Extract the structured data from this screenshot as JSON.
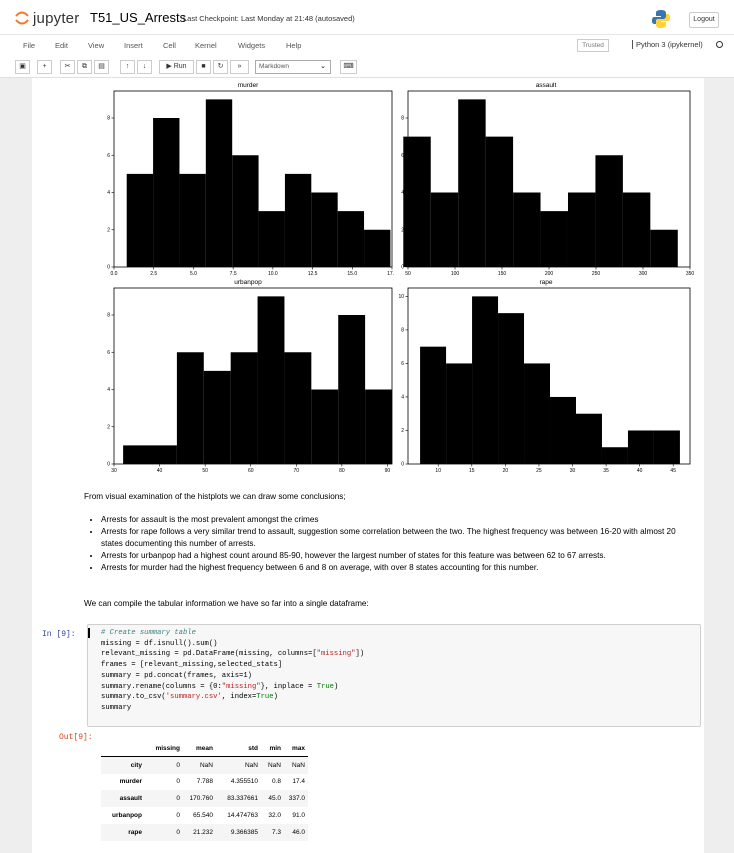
{
  "app": {
    "brand": "jupyter",
    "notebook_title": "T51_US_Arrests",
    "checkpoint": "Last Checkpoint: Last Monday at 21:48  (autosaved)",
    "logout": "Logout"
  },
  "menu": {
    "items": [
      "File",
      "Edit",
      "View",
      "Insert",
      "Cell",
      "Kernel",
      "Widgets",
      "Help"
    ],
    "trusted": "Trusted",
    "kernel": "Python 3 (ipykernel)"
  },
  "toolbar": {
    "run": "▶ Run",
    "cell_type": "Markdown"
  },
  "chart_data": [
    {
      "type": "bar",
      "title": "murder",
      "bins": [
        [
          0.8,
          2.46,
          5
        ],
        [
          2.46,
          4.12,
          8
        ],
        [
          4.12,
          5.78,
          5
        ],
        [
          5.78,
          7.44,
          9
        ],
        [
          7.44,
          9.1,
          6
        ],
        [
          9.1,
          10.76,
          3
        ],
        [
          10.76,
          12.42,
          5
        ],
        [
          12.42,
          14.08,
          4
        ],
        [
          14.08,
          15.74,
          3
        ],
        [
          15.74,
          17.4,
          2
        ]
      ],
      "xlim": [
        0,
        17.5
      ],
      "ylim": [
        0,
        9.45
      ],
      "xticks": [
        0.0,
        2.5,
        5.0,
        7.5,
        10.0,
        12.5,
        15.0,
        17.5
      ],
      "xtick_labels": [
        "0.0",
        "2.5",
        "5.0",
        "7.5",
        "10.0",
        "12.5",
        "15.0",
        "17.5"
      ],
      "yticks": [
        0,
        2,
        4,
        6,
        8
      ]
    },
    {
      "type": "bar",
      "title": "assault",
      "bins": [
        [
          45,
          74.2,
          7
        ],
        [
          74.2,
          103.4,
          4
        ],
        [
          103.4,
          132.6,
          9
        ],
        [
          132.6,
          161.8,
          7
        ],
        [
          161.8,
          191,
          4
        ],
        [
          191,
          220.2,
          3
        ],
        [
          220.2,
          249.4,
          4
        ],
        [
          249.4,
          278.6,
          6
        ],
        [
          278.6,
          307.8,
          4
        ],
        [
          307.8,
          337,
          2
        ]
      ],
      "xlim": [
        50,
        350
      ],
      "ylim": [
        0,
        9.45
      ],
      "xticks": [
        50,
        100,
        150,
        200,
        250,
        300,
        350
      ],
      "xtick_labels": [
        "50",
        "100",
        "150",
        "200",
        "250",
        "300",
        "350"
      ],
      "yticks": [
        0,
        2,
        4,
        6,
        8
      ]
    },
    {
      "type": "bar",
      "title": "urbanpop",
      "bins": [
        [
          32,
          37.9,
          1
        ],
        [
          37.9,
          43.8,
          1
        ],
        [
          43.8,
          49.7,
          6
        ],
        [
          49.7,
          55.6,
          5
        ],
        [
          55.6,
          61.5,
          6
        ],
        [
          61.5,
          67.4,
          9
        ],
        [
          67.4,
          73.3,
          6
        ],
        [
          73.3,
          79.2,
          4
        ],
        [
          79.2,
          85.1,
          8
        ],
        [
          85.1,
          91,
          4
        ]
      ],
      "xlim": [
        30,
        91
      ],
      "ylim": [
        0,
        9.45
      ],
      "xticks": [
        30,
        40,
        50,
        60,
        70,
        80,
        90
      ],
      "xtick_labels": [
        "30",
        "40",
        "50",
        "60",
        "70",
        "80",
        "90"
      ],
      "yticks": [
        0,
        2,
        4,
        6,
        8
      ]
    },
    {
      "type": "bar",
      "title": "rape",
      "bins": [
        [
          7.3,
          11.17,
          7
        ],
        [
          11.17,
          15.04,
          6
        ],
        [
          15.04,
          18.91,
          10
        ],
        [
          18.91,
          22.78,
          9
        ],
        [
          22.78,
          26.65,
          6
        ],
        [
          26.65,
          30.52,
          4
        ],
        [
          30.52,
          34.39,
          3
        ],
        [
          34.39,
          38.26,
          1
        ],
        [
          38.26,
          42.13,
          2
        ],
        [
          42.13,
          46,
          2
        ]
      ],
      "xlim": [
        5.5,
        47.5
      ],
      "ylim": [
        0,
        10.5
      ],
      "xticks": [
        10,
        15,
        20,
        25,
        30,
        35,
        40,
        45
      ],
      "xtick_labels": [
        "10",
        "15",
        "20",
        "25",
        "30",
        "35",
        "40",
        "45"
      ],
      "yticks": [
        0,
        2,
        4,
        6,
        8,
        10
      ]
    }
  ],
  "markdown": {
    "intro": "From visual examination of the histplots we can draw some conclusions;",
    "bullets": [
      "Arrests for assault is the most prevalent amongst the crimes",
      "Arrests for rape follows a very similar trend to assault, suggestion some correlation between the two. The highest frequency was between 16-20 with almost 20 states documenting this number of arrests.",
      "Arrests for urbanpop had a highest count around 85-90, however the largest number of states for this feature was between 62 to 67 arrests.",
      "Arrests for murder had the highest frequency between 6 and 8 on average, with over 8 states accounting for this number."
    ],
    "compile": "We can compile the tabular information we have so far into a single dataframe:"
  },
  "cell": {
    "in_prompt": "In [9]:",
    "out_prompt": "Out[9]:",
    "code": {
      "comment": "# Create summary table",
      "l2": "missing = df.isnull().sum()",
      "l3a": "relevant_missing = pd.DataFrame(missing, columns=[",
      "l3s": "\"missing\"",
      "l3b": "])",
      "l4": "frames = [relevant_missing,selected_stats]",
      "l5": "summary = pd.concat(frames, axis=1)",
      "l6a": "summary.rename(columns = {0:",
      "l6s": "\"missing\"",
      "l6b": "}, inplace = ",
      "l6k": "True",
      "l6c": ")",
      "l7a": "summary.to_csv(",
      "l7s": "'summary.csv'",
      "l7b": ", index=",
      "l7k": "True",
      "l7c": ")",
      "l8": "summary"
    }
  },
  "dataframe": {
    "columns": [
      "missing",
      "mean",
      "std",
      "min",
      "max"
    ],
    "rows": [
      {
        "index": "city",
        "values": [
          "0",
          "NaN",
          "NaN",
          "NaN",
          "NaN"
        ]
      },
      {
        "index": "murder",
        "values": [
          "0",
          "7.788",
          "4.355510",
          "0.8",
          "17.4"
        ]
      },
      {
        "index": "assault",
        "values": [
          "0",
          "170.760",
          "83.337661",
          "45.0",
          "337.0"
        ]
      },
      {
        "index": "urbanpop",
        "values": [
          "0",
          "65.540",
          "14.474763",
          "32.0",
          "91.0"
        ]
      },
      {
        "index": "rape",
        "values": [
          "0",
          "21.232",
          "9.366385",
          "7.3",
          "46.0"
        ]
      }
    ]
  }
}
